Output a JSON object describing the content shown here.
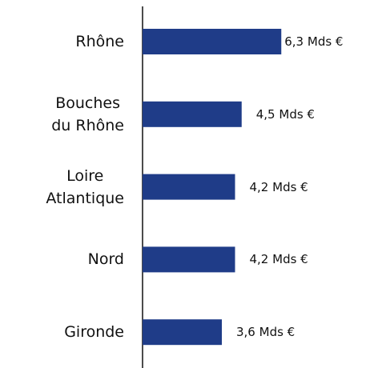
{
  "chart_data": {
    "type": "bar",
    "orientation": "horizontal",
    "categories": [
      "Rhône",
      "Bouches\ndu Rhône",
      "Loire\nAtlantique",
      "Nord",
      "Gironde"
    ],
    "values": [
      6.3,
      4.5,
      4.2,
      4.2,
      3.6
    ],
    "value_labels": [
      "6,3 Mds €",
      "4,5 Mds €",
      "4,2 Mds €",
      "4,2 Mds €",
      "3,6 Mds €"
    ],
    "color": "#1f3c88"
  }
}
